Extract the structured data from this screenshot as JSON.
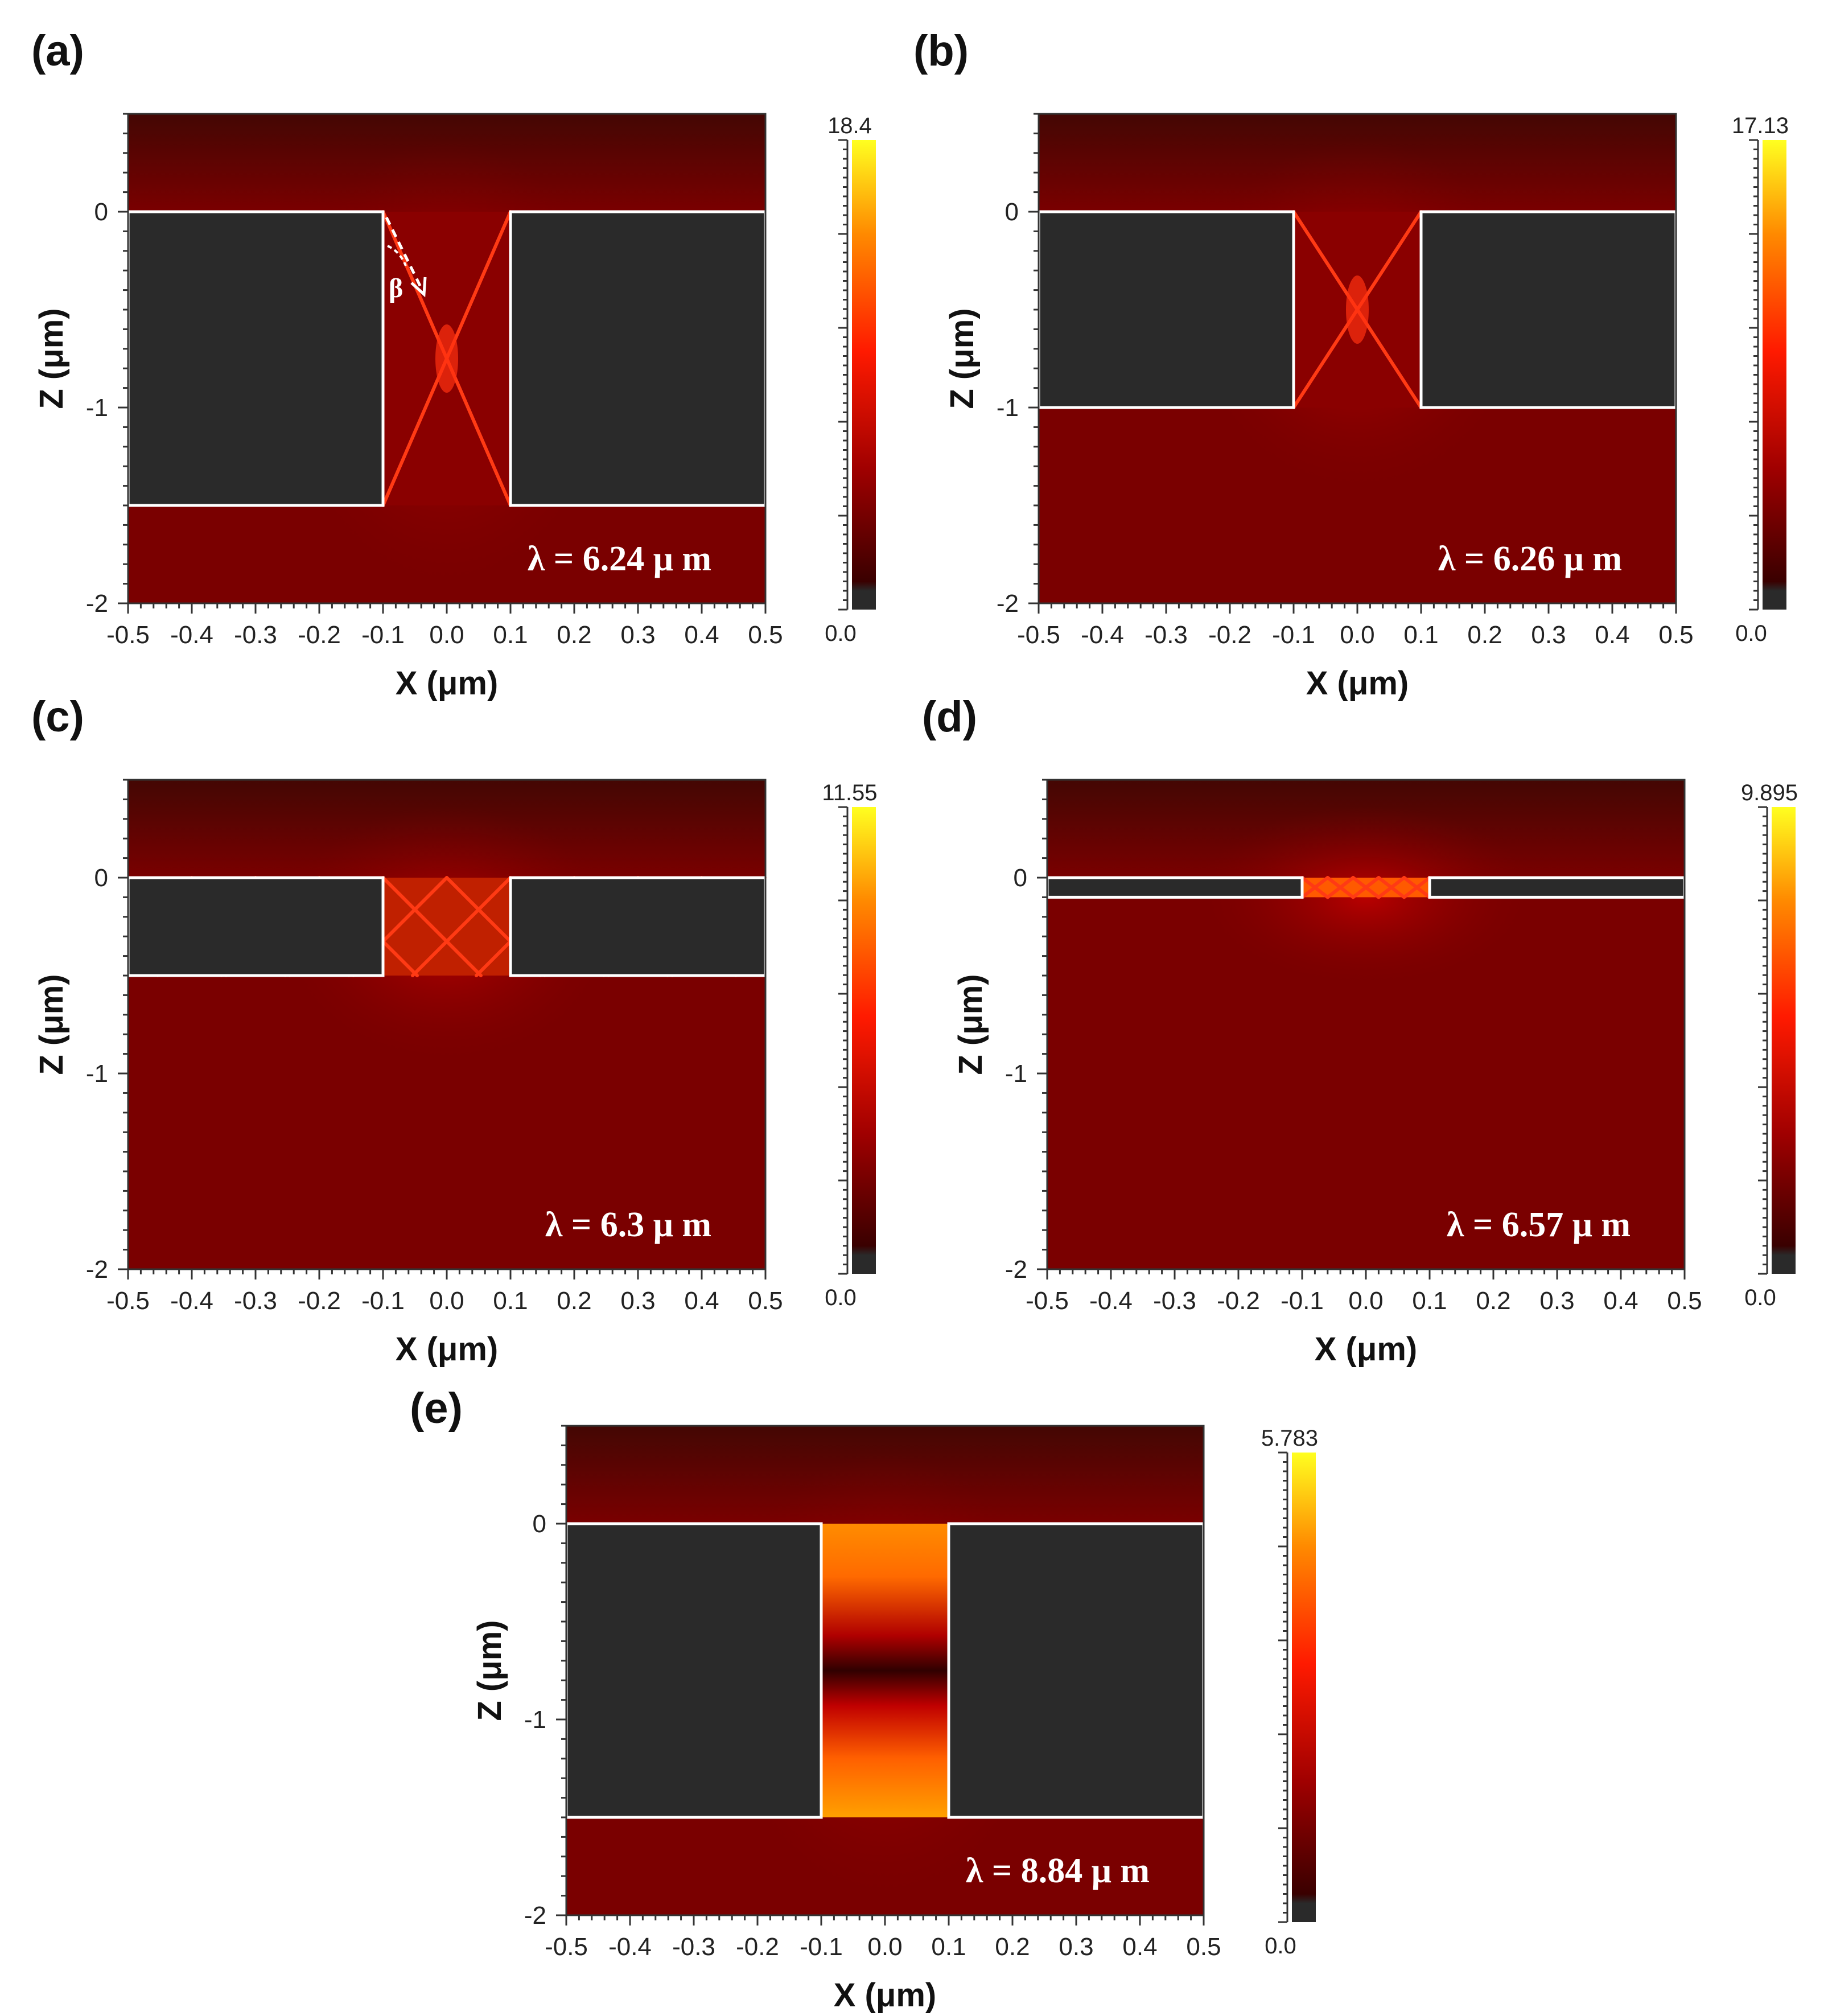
{
  "chart_data": [
    {
      "type": "heatmap",
      "panel": "(a)",
      "xlabel": "X (μm)",
      "ylabel": "Z (μm)",
      "xlim": [
        -0.5,
        0.5
      ],
      "ylim": [
        -2,
        0.5
      ],
      "x_ticks": [
        "-0.5",
        "-0.4",
        "-0.3",
        "-0.2",
        "-0.1",
        "0.0",
        "0.1",
        "0.2",
        "0.3",
        "0.4",
        "0.5"
      ],
      "y_ticks": [
        "0",
        "-1",
        "-2"
      ],
      "colorbar_max": "18.4",
      "colorbar_min": "0.0",
      "wavelength_label": "λ = 6.24 μ m",
      "annotation": "β",
      "slit_x": [
        -0.1,
        0.1
      ],
      "slab_z": [
        -1.5,
        0
      ],
      "pattern": "x"
    },
    {
      "type": "heatmap",
      "panel": "(b)",
      "xlabel": "X (μm)",
      "ylabel": "Z (μm)",
      "xlim": [
        -0.5,
        0.5
      ],
      "ylim": [
        -2,
        0.5
      ],
      "x_ticks": [
        "-0.5",
        "-0.4",
        "-0.3",
        "-0.2",
        "-0.1",
        "0.0",
        "0.1",
        "0.2",
        "0.3",
        "0.4",
        "0.5"
      ],
      "y_ticks": [
        "0",
        "-1",
        "-2"
      ],
      "colorbar_max": "17.13",
      "colorbar_min": "0.0",
      "wavelength_label": "λ = 6.26 μ m",
      "annotation": "",
      "slit_x": [
        -0.1,
        0.1
      ],
      "slab_z": [
        -1.0,
        0
      ],
      "pattern": "x"
    },
    {
      "type": "heatmap",
      "panel": "(c)",
      "xlabel": "X (μm)",
      "ylabel": "Z (μm)",
      "xlim": [
        -0.5,
        0.5
      ],
      "ylim": [
        -2,
        0.5
      ],
      "x_ticks": [
        "-0.5",
        "-0.4",
        "-0.3",
        "-0.2",
        "-0.1",
        "0.0",
        "0.1",
        "0.2",
        "0.3",
        "0.4",
        "0.5"
      ],
      "y_ticks": [
        "0",
        "-1",
        "-2"
      ],
      "colorbar_max": "11.55",
      "colorbar_min": "0.0",
      "wavelength_label": "λ = 6.3 μ m",
      "annotation": "",
      "slit_x": [
        -0.1,
        0.1
      ],
      "slab_z": [
        -0.5,
        0
      ],
      "pattern": "lattice"
    },
    {
      "type": "heatmap",
      "panel": "(d)",
      "xlabel": "X (μm)",
      "ylabel": "Z (μm)",
      "xlim": [
        -0.5,
        0.5
      ],
      "ylim": [
        -2,
        0.5
      ],
      "x_ticks": [
        "-0.5",
        "-0.4",
        "-0.3",
        "-0.2",
        "-0.1",
        "0.0",
        "0.1",
        "0.2",
        "0.3",
        "0.4",
        "0.5"
      ],
      "y_ticks": [
        "0",
        "-1",
        "-2"
      ],
      "colorbar_max": "9.895",
      "colorbar_min": "0.0",
      "wavelength_label": "λ = 6.57 μ m",
      "annotation": "",
      "slit_x": [
        -0.1,
        0.1
      ],
      "slab_z": [
        -0.1,
        0
      ],
      "pattern": "thin"
    },
    {
      "type": "heatmap",
      "panel": "(e)",
      "xlabel": "X (μm)",
      "ylabel": "Z (μm)",
      "xlim": [
        -0.5,
        0.5
      ],
      "ylim": [
        -2,
        0.5
      ],
      "x_ticks": [
        "-0.5",
        "-0.4",
        "-0.3",
        "-0.2",
        "-0.1",
        "0.0",
        "0.1",
        "0.2",
        "0.3",
        "0.4",
        "0.5"
      ],
      "y_ticks": [
        "0",
        "-1",
        "-2"
      ],
      "colorbar_max": "5.783",
      "colorbar_min": "0.0",
      "wavelength_label": "λ = 8.84 μ m",
      "annotation": "",
      "slit_x": [
        -0.1,
        0.1
      ],
      "slab_z": [
        -1.5,
        0
      ],
      "pattern": "bands"
    }
  ],
  "colors": {
    "background_field": "#7a0000",
    "field_dark": "#2b0a06",
    "metal_block": "#2a2a2a",
    "outline": "#ffffff",
    "ray": "#ff3a14",
    "cbar_top": "#ffff00",
    "cbar_mid": "#ff2a00",
    "cbar_low": "#4a0000",
    "cbar_bottom": "#2a2a2a"
  }
}
